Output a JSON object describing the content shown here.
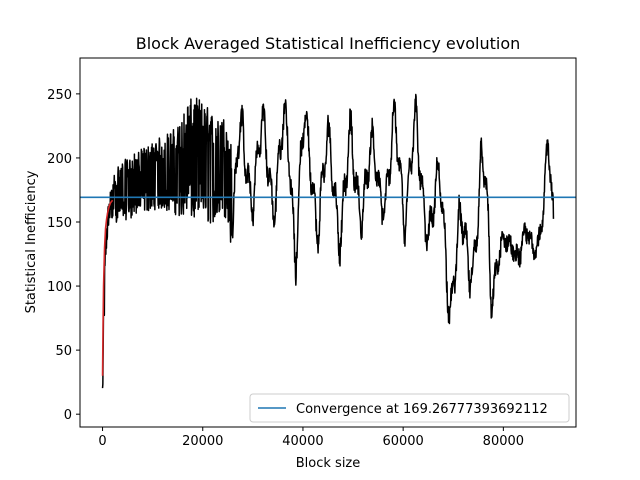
{
  "chart_data": {
    "type": "line",
    "title": "Block Averaged Statistical Inefficiency evolution",
    "xlabel": "Block size",
    "ylabel": "Statistical Inefficiency",
    "xlim": [
      -4500,
      94500
    ],
    "ylim": [
      -10,
      278
    ],
    "xticks": [
      0,
      20000,
      40000,
      60000,
      80000
    ],
    "xtick_labels": [
      "0",
      "20000",
      "40000",
      "60000",
      "80000"
    ],
    "yticks": [
      0,
      50,
      100,
      150,
      200,
      250
    ],
    "ytick_labels": [
      "0",
      "50",
      "100",
      "150",
      "200",
      "250"
    ],
    "grid": false,
    "legend_position": "lower right",
    "series": [
      {
        "name": "",
        "color": "#000000",
        "description_points": {
          "x": [
            0,
            300,
            700,
            1200,
            2000,
            3000,
            5000,
            7000,
            9000,
            11000,
            13000,
            15000,
            17000,
            19000,
            21000,
            23000,
            25000,
            26000,
            27000,
            29000,
            31000,
            33000,
            35000,
            37000,
            38500,
            40000,
            41000,
            42000,
            44000,
            46000,
            48000,
            50000,
            52000,
            54000,
            56000,
            58000,
            60000,
            61500,
            62500,
            64000,
            66000,
            68000,
            69500,
            71000,
            73000,
            74500,
            75500,
            76500,
            77500,
            78500,
            80000,
            82000,
            84000,
            86000,
            88000,
            89000,
            90000
          ],
          "y_low": [
            2,
            60,
            120,
            145,
            148,
            150,
            152,
            155,
            158,
            160,
            158,
            155,
            150,
            150,
            148,
            150,
            152,
            118,
            140,
            150,
            140,
            145,
            140,
            150,
            98,
            150,
            135,
            120,
            130,
            125,
            110,
            120,
            140,
            130,
            150,
            140,
            125,
            150,
            120,
            130,
            120,
            90,
            64,
            70,
            85,
            100,
            90,
            80,
            65,
            90,
            110,
            120,
            105,
            120,
            130,
            135,
            145
          ],
          "y_high": [
            30,
            110,
            150,
            168,
            185,
            195,
            200,
            205,
            210,
            215,
            220,
            225,
            245,
            248,
            240,
            230,
            235,
            200,
            240,
            250,
            245,
            250,
            252,
            250,
            238,
            265,
            235,
            250,
            240,
            230,
            245,
            235,
            240,
            230,
            215,
            250,
            245,
            265,
            250,
            210,
            200,
            205,
            150,
            170,
            180,
            190,
            220,
            238,
            175,
            160,
            140,
            150,
            150,
            145,
            190,
            235,
            165
          ]
        }
      },
      {
        "name": "",
        "color": "#d62728",
        "x": [
          0,
          100,
          200,
          400,
          600,
          800,
          1000,
          1300,
          1600,
          2000
        ],
        "y": [
          30,
          70,
          100,
          130,
          145,
          152,
          157,
          162,
          165,
          167
        ]
      }
    ],
    "hline": {
      "y": 169.26777393692112,
      "color": "#1f77b4",
      "legend_label": "Convergence at 169.26777393692112"
    }
  }
}
